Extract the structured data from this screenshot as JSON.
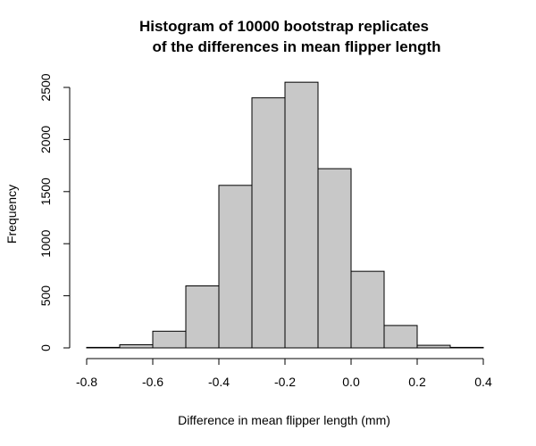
{
  "chart_data": {
    "type": "bar",
    "title_line1": "Histogram of 10000 bootstrap replicates",
    "title_line2": "of the differences in mean flipper length",
    "xlabel": "Difference in mean flipper length (mm)",
    "ylabel": "Frequency",
    "xlim": [
      -0.8,
      0.4
    ],
    "ylim": [
      0,
      2500
    ],
    "x_ticks": [
      "-0.8",
      "-0.6",
      "-0.4",
      "-0.2",
      "0.0",
      "0.2",
      "0.4"
    ],
    "y_ticks": [
      "0",
      "500",
      "1000",
      "1500",
      "2000",
      "2500"
    ],
    "bin_edges": [
      -0.8,
      -0.7,
      -0.6,
      -0.5,
      -0.4,
      -0.3,
      -0.2,
      -0.1,
      0.0,
      0.1,
      0.2,
      0.3,
      0.4
    ],
    "values": [
      5,
      30,
      160,
      595,
      1560,
      2400,
      2550,
      1720,
      735,
      215,
      25,
      5
    ],
    "bar_fill": "#c8c8c8",
    "bar_stroke": "#000000"
  }
}
